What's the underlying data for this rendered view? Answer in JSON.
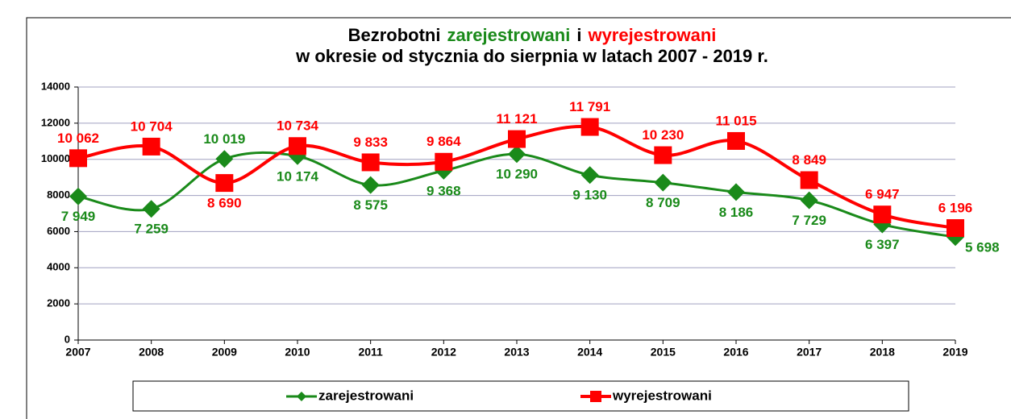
{
  "chart_data": {
    "type": "line",
    "title": [
      "Bezrobotni",
      "zarejestrowani",
      "i",
      "wyrejestrowani"
    ],
    "subtitle": "w okresie od stycznia do sierpnia w latach 2007 -  2019 r.",
    "categories": [
      "2007",
      "2008",
      "2009",
      "2010",
      "2011",
      "2012",
      "2013",
      "2014",
      "2015",
      "2016",
      "2017",
      "2018",
      "2019"
    ],
    "series": [
      {
        "name": "zarejestrowani",
        "color": "#1a8a1a",
        "marker": "diamond",
        "values": [
          7949,
          7259,
          10019,
          10174,
          8575,
          9368,
          10290,
          9130,
          8709,
          8186,
          7729,
          6397,
          5698
        ],
        "value_labels": [
          "7 949",
          "7 259",
          "10 019",
          "10 174",
          "8 575",
          "9 368",
          "10 290",
          "9 130",
          "8 709",
          "8 186",
          "7 729",
          "6 397",
          "5 698"
        ]
      },
      {
        "name": "wyrejestrowani",
        "color": "#ff0000",
        "marker": "square",
        "values": [
          10062,
          10704,
          8690,
          10734,
          9833,
          9864,
          11121,
          11791,
          10230,
          11015,
          8849,
          6947,
          6196
        ],
        "value_labels": [
          "10 062",
          "10 704",
          "8 690",
          "10 734",
          "9 833",
          "9 864",
          "11 121",
          "11 791",
          "10 230",
          "11 015",
          "8 849",
          "6 947",
          "6 196"
        ]
      }
    ],
    "ylim": [
      0,
      14000
    ],
    "yticks": [
      0,
      2000,
      4000,
      6000,
      8000,
      10000,
      12000,
      14000
    ],
    "grid": true,
    "smooth": true,
    "legend": "bottom"
  }
}
